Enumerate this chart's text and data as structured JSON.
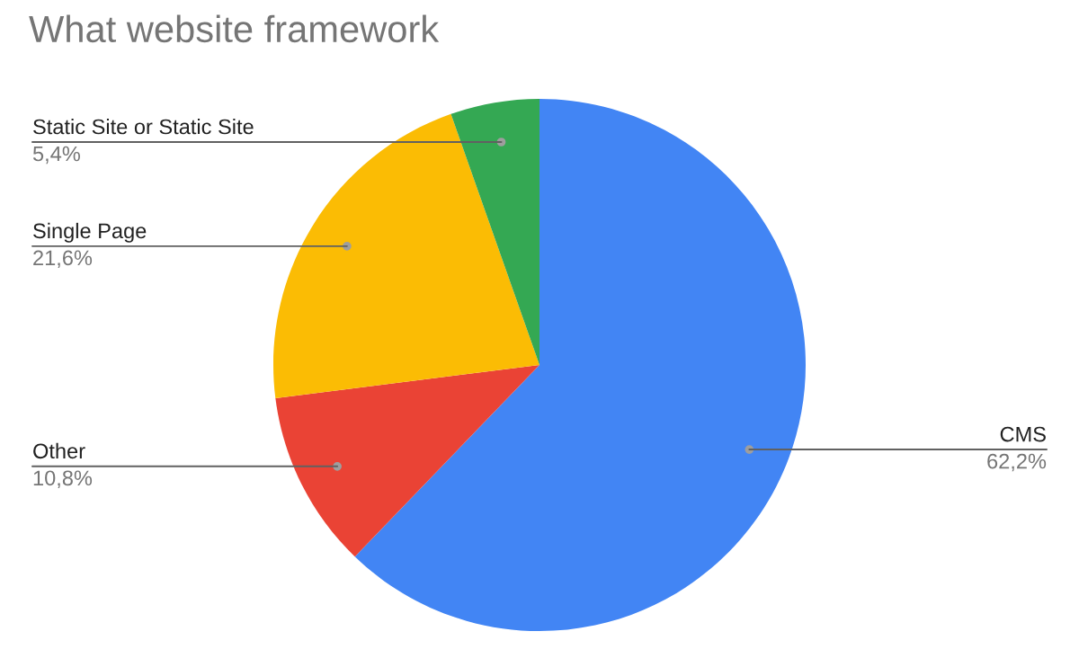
{
  "chart_data": {
    "type": "pie",
    "title": "What website framework",
    "categories": [
      "CMS",
      "Other",
      "Single Page",
      "Static Site or Static Site"
    ],
    "values": [
      62.2,
      10.8,
      21.6,
      5.4
    ],
    "value_labels": [
      "62,2%",
      "10,8%",
      "21,6%",
      "5,4%"
    ],
    "colors": [
      "#4285f4",
      "#ea4335",
      "#fbbc04",
      "#34a853"
    ],
    "legend": false
  }
}
